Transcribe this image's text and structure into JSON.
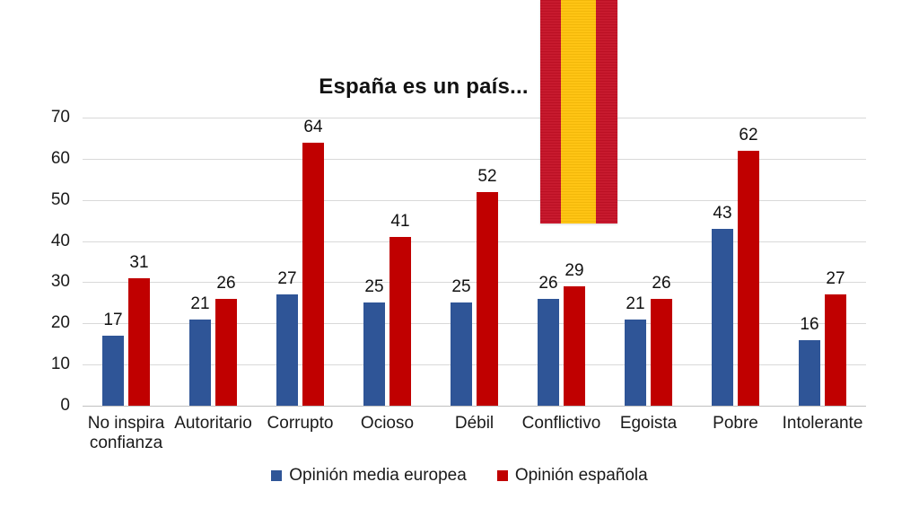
{
  "chart_data": {
    "type": "bar",
    "title": "España es un país...",
    "categories": [
      "No inspira confianza",
      "Autoritario",
      "Corrupto",
      "Ocioso",
      "Débil",
      "Conflictivo",
      "Egoista",
      "Pobre",
      "Intolerante"
    ],
    "series": [
      {
        "name": "Opinión media europea",
        "color": "#2F5597",
        "values": [
          17,
          21,
          27,
          25,
          25,
          26,
          21,
          43,
          16
        ]
      },
      {
        "name": "Opinión española",
        "color": "#C00000",
        "values": [
          31,
          26,
          64,
          41,
          52,
          29,
          26,
          62,
          27
        ]
      }
    ],
    "xlabel": "",
    "ylabel": "",
    "ylim": [
      0,
      70
    ],
    "yticks": [
      0,
      10,
      20,
      30,
      40,
      50,
      60,
      70
    ],
    "grid": true,
    "data_labels": true,
    "legend_position": "bottom",
    "gridline_color": "#d9d9d9",
    "axis_line_color": "#bfbfbf"
  },
  "flag": {
    "name": "spain-flag-ribbon",
    "colors": {
      "red": "#C51126",
      "yellow": "#FFC20A"
    }
  }
}
